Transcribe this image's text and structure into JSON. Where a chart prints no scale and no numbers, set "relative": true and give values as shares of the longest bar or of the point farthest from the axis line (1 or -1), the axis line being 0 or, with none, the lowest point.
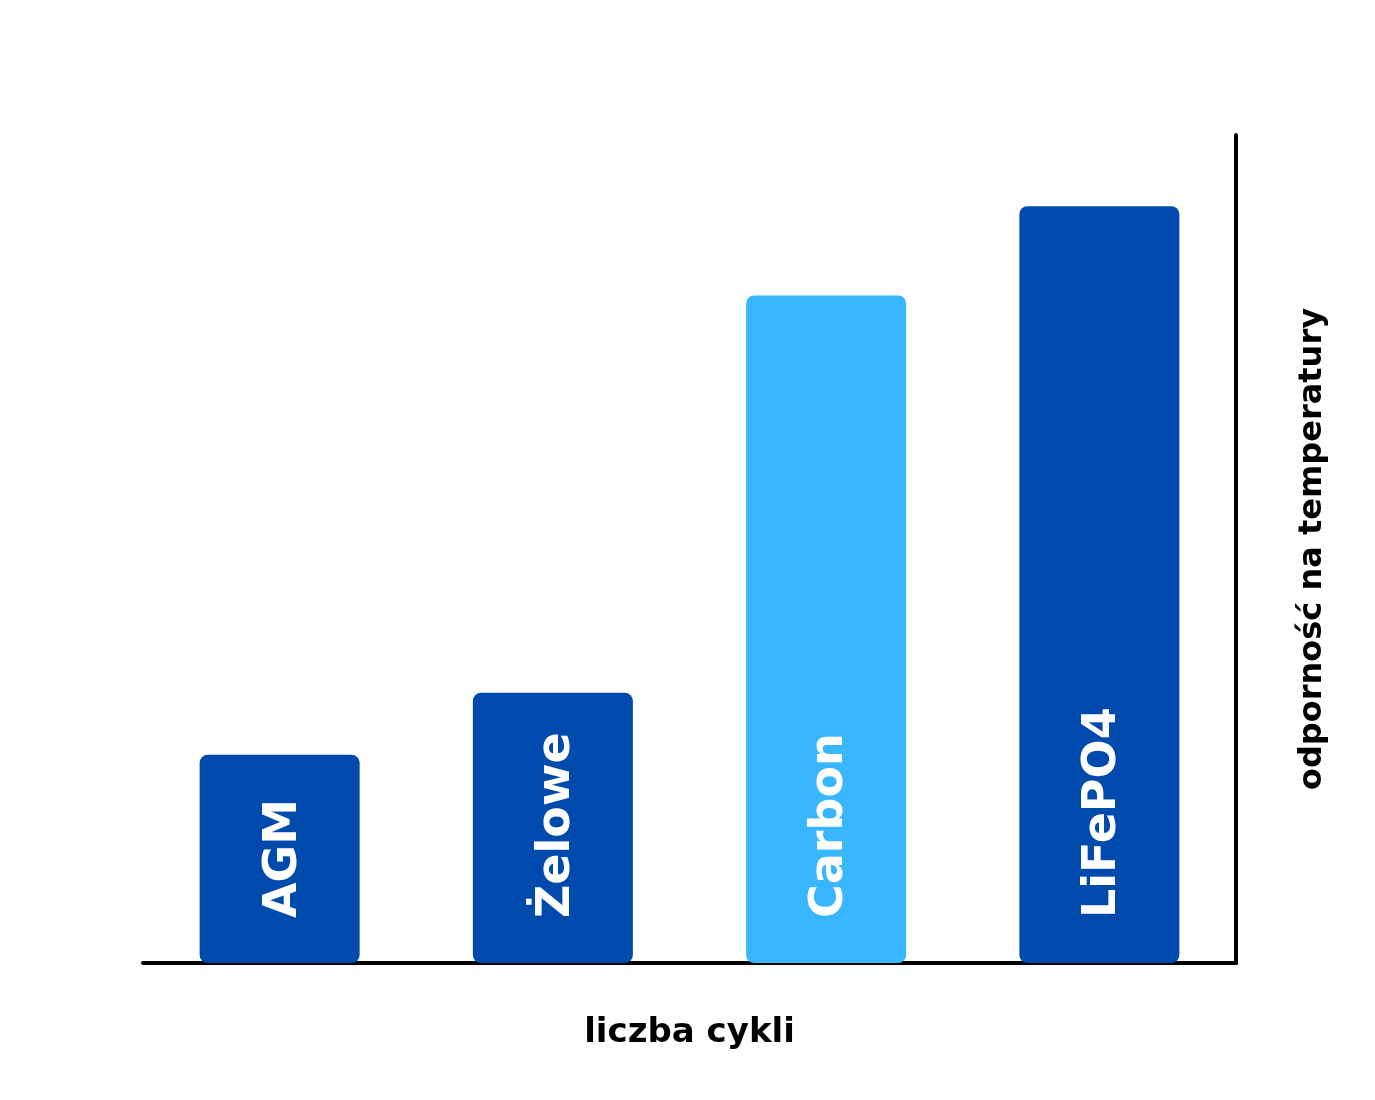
{
  "chart_data": {
    "type": "bar",
    "relative": true,
    "categories": [
      "AGM",
      "Żelowe",
      "Carbon",
      "LiFePO4"
    ],
    "values": [
      0.275,
      0.357,
      0.882,
      1
    ],
    "colors": [
      "#004aad",
      "#004aad",
      "#38b6ff",
      "#004aad"
    ],
    "xlabel": "liczba cykli",
    "ylabel": "odporność na temperatury"
  }
}
